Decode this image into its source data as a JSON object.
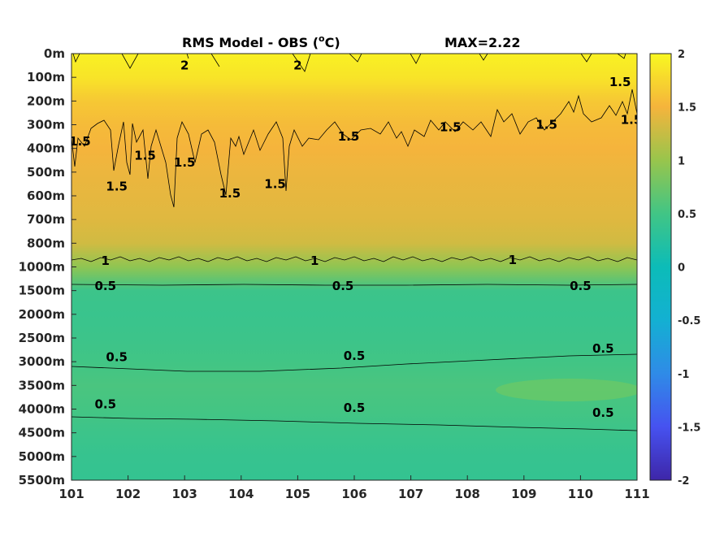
{
  "chart_data": {
    "type": "heatmap",
    "title": "RMS Model - OBS (",
    "title_unit": "o",
    "title_unit_suffix": "C)",
    "max_label": "MAX=2.22",
    "x_ticks": [
      "101",
      "102",
      "103",
      "104",
      "105",
      "106",
      "107",
      "108",
      "109",
      "110",
      "111"
    ],
    "y_ticks": [
      "0m",
      "100m",
      "200m",
      "300m",
      "400m",
      "500m",
      "600m",
      "700m",
      "800m",
      "1000m",
      "1500m",
      "2000m",
      "2500m",
      "3000m",
      "3500m",
      "4000m",
      "4500m",
      "5000m",
      "5500m"
    ],
    "xlim": [
      101,
      111
    ],
    "colorbar": {
      "ticks": [
        "2",
        "1.5",
        "1",
        "0.5",
        "0",
        "-0.5",
        "-1",
        "-1.5",
        "-2"
      ],
      "range": [
        -2,
        2
      ],
      "colormap": "parula"
    },
    "field_rows": [
      {
        "depth": "0m",
        "value": 1.95
      },
      {
        "depth": "100m",
        "value": 1.85
      },
      {
        "depth": "200m",
        "value": 1.65
      },
      {
        "depth": "300m",
        "value": 1.55
      },
      {
        "depth": "400m",
        "value": 1.5
      },
      {
        "depth": "500m",
        "value": 1.45
      },
      {
        "depth": "600m",
        "value": 1.42
      },
      {
        "depth": "700m",
        "value": 1.38
      },
      {
        "depth": "800m",
        "value": 1.3
      },
      {
        "depth": "1000m",
        "value": 0.95
      },
      {
        "depth": "1500m",
        "value": 0.45
      },
      {
        "depth": "2000m",
        "value": 0.42
      },
      {
        "depth": "2500m",
        "value": 0.45
      },
      {
        "depth": "3000m",
        "value": 0.5
      },
      {
        "depth": "3500m",
        "value": 0.55
      },
      {
        "depth": "4000m",
        "value": 0.52
      },
      {
        "depth": "4500m",
        "value": 0.45
      },
      {
        "depth": "5000m",
        "value": 0.4
      },
      {
        "depth": "5500m",
        "value": 0.38
      }
    ],
    "contour_labels": [
      {
        "text": "2",
        "x": 103.0,
        "depth": 0.5
      },
      {
        "text": "2",
        "x": 105.0,
        "depth": 0.5
      },
      {
        "text": "1.5",
        "x": 110.7,
        "depth": 1.2
      },
      {
        "text": "1.5",
        "x": 110.9,
        "depth": 2.8
      },
      {
        "text": "1.5",
        "x": 101.15,
        "depth": 3.7
      },
      {
        "text": "1.5",
        "x": 102.3,
        "depth": 4.3
      },
      {
        "text": "1.5",
        "x": 101.8,
        "depth": 5.6
      },
      {
        "text": "1.5",
        "x": 103.0,
        "depth": 4.6
      },
      {
        "text": "1.5",
        "x": 103.8,
        "depth": 5.9
      },
      {
        "text": "1.5",
        "x": 104.6,
        "depth": 5.5
      },
      {
        "text": "1.5",
        "x": 105.9,
        "depth": 3.5
      },
      {
        "text": "1.5",
        "x": 107.7,
        "depth": 3.1
      },
      {
        "text": "1.5",
        "x": 109.4,
        "depth": 3.0
      },
      {
        "text": "1",
        "x": 101.6,
        "depth": 8.75
      },
      {
        "text": "1",
        "x": 105.3,
        "depth": 8.75
      },
      {
        "text": "1",
        "x": 108.8,
        "depth": 8.7
      },
      {
        "text": "0.5",
        "x": 101.6,
        "depth": 9.8
      },
      {
        "text": "0.5",
        "x": 105.8,
        "depth": 9.8
      },
      {
        "text": "0.5",
        "x": 110.0,
        "depth": 9.8
      },
      {
        "text": "0.5",
        "x": 101.8,
        "depth": 12.8
      },
      {
        "text": "0.5",
        "x": 106.0,
        "depth": 12.75
      },
      {
        "text": "0.5",
        "x": 110.4,
        "depth": 12.45
      },
      {
        "text": "0.5",
        "x": 101.6,
        "depth": 14.8
      },
      {
        "text": "0.5",
        "x": 106.0,
        "depth": 14.95
      },
      {
        "text": "0.5",
        "x": 110.4,
        "depth": 15.15
      }
    ]
  }
}
